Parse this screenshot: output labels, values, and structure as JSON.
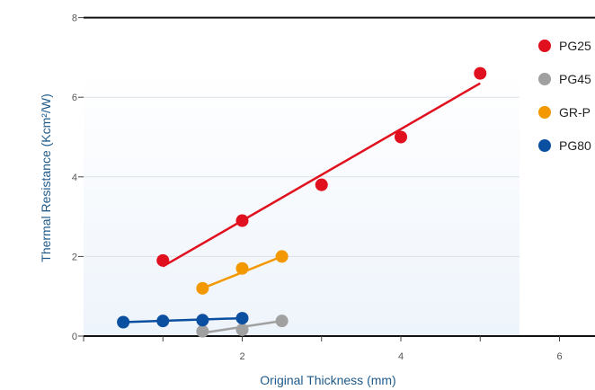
{
  "chart_data": {
    "type": "scatter",
    "xlabel": "Original Thickness (mm)",
    "ylabel": "Thermal Resistance (Kcm²/W)",
    "xlim": [
      0,
      6.5
    ],
    "ylim": [
      0,
      8
    ],
    "x_ticks": [
      {
        "value": 2,
        "label": "2"
      },
      {
        "value": 4,
        "label": "4"
      },
      {
        "value": 6,
        "label": "6"
      }
    ],
    "y_ticks": [
      {
        "value": 0,
        "label": "0"
      },
      {
        "value": 2,
        "label": "2"
      },
      {
        "value": 4,
        "label": "4"
      },
      {
        "value": 6,
        "label": "6"
      },
      {
        "value": 8,
        "label": "8"
      }
    ],
    "grid": "horizontal",
    "legend_position": "right",
    "series": [
      {
        "name": "PG25",
        "color": "#e0101e",
        "points": [
          [
            1,
            1.9
          ],
          [
            2,
            2.9
          ],
          [
            3,
            3.8
          ],
          [
            4,
            5.0
          ],
          [
            5,
            6.6
          ]
        ],
        "fit_line": [
          [
            1,
            1.75
          ],
          [
            5,
            6.35
          ]
        ]
      },
      {
        "name": "PG45",
        "color": "#a0a0a0",
        "points": [
          [
            1.5,
            0.12
          ],
          [
            2,
            0.16
          ],
          [
            2.5,
            0.38
          ]
        ],
        "fit_line": [
          [
            1.5,
            0.08
          ],
          [
            2.5,
            0.38
          ]
        ]
      },
      {
        "name": "GR-P",
        "color": "#f39800",
        "points": [
          [
            1.5,
            1.2
          ],
          [
            2,
            1.7
          ],
          [
            2.5,
            2.0
          ]
        ],
        "fit_line": [
          [
            1.5,
            1.2
          ],
          [
            2.5,
            2.0
          ]
        ]
      },
      {
        "name": "PG80",
        "color": "#0a4fa0",
        "points": [
          [
            0.5,
            0.35
          ],
          [
            1,
            0.38
          ],
          [
            1.5,
            0.4
          ],
          [
            2,
            0.45
          ]
        ],
        "fit_line": [
          [
            0.5,
            0.35
          ],
          [
            2,
            0.45
          ]
        ]
      }
    ]
  }
}
